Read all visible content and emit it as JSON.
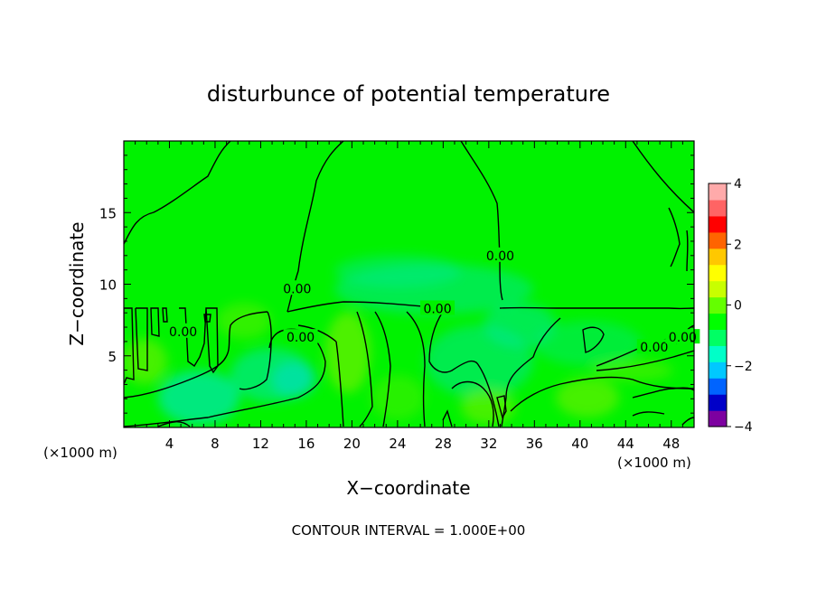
{
  "chart_data": {
    "type": "heatmap",
    "title": "disturbunce of potential temperature",
    "xlabel": "X−coordinate",
    "ylabel": "Z−coordinate",
    "x_unit_left": "(×1000 m)",
    "x_unit_right": "(×1000 m)",
    "footer": "CONTOUR INTERVAL = 1.000E+00",
    "xlim": [
      0,
      50
    ],
    "ylim": [
      0,
      20
    ],
    "x_ticks": [
      4,
      8,
      12,
      16,
      20,
      24,
      28,
      32,
      36,
      40,
      44,
      48
    ],
    "y_ticks": [
      5,
      10,
      15
    ],
    "colorbar": {
      "range": [
        -4,
        4
      ],
      "ticks": [
        4,
        2,
        0,
        -2,
        -4
      ],
      "colors": [
        "#7d00a0",
        "#0000c8",
        "#0064ff",
        "#00c8ff",
        "#00ffc8",
        "#00ff64",
        "#00ff00",
        "#64ff00",
        "#c8ff00",
        "#ffff00",
        "#ffc800",
        "#ff6400",
        "#ff0000",
        "#ff6464",
        "#ffaaaa"
      ]
    },
    "background_color": "#00f200",
    "contour_labels": [
      {
        "text": "0.00",
        "x": 27.5,
        "z": 8.3
      },
      {
        "text": "0.00",
        "x": 15.5,
        "z": 6.3
      },
      {
        "text": "0.00",
        "x": 15.2,
        "z": 9.7
      },
      {
        "text": "0.00",
        "x": 33.0,
        "z": 12.0
      },
      {
        "text": "0.00",
        "x": 5.2,
        "z": 6.7
      },
      {
        "text": "0.00",
        "x": 46.5,
        "z": 5.6
      },
      {
        "text": "0.00",
        "x": 49.0,
        "z": 6.3
      }
    ]
  }
}
